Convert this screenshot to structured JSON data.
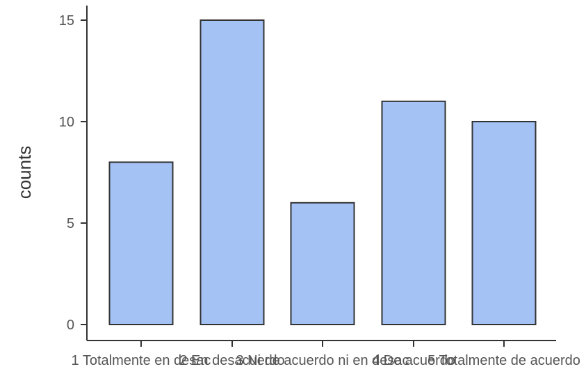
{
  "chart_data": {
    "type": "bar",
    "title": "",
    "xlabel": "",
    "ylabel": "counts",
    "categories": [
      "1 Totalmente en desac",
      "2 En desacuerdo",
      "3 Ni de acuerdo ni en desac",
      "4 De acuerdo",
      "5 Totalmente de acuerdo"
    ],
    "values": [
      8,
      15,
      6,
      11,
      10
    ],
    "ylim": [
      0,
      15.7
    ],
    "yticks": [
      0,
      5,
      10,
      15
    ],
    "grid": false,
    "legend": "none",
    "colors": {
      "bar_fill": "#a4c2f4",
      "bar_stroke": "#333333",
      "axis": "#333333",
      "text": "#555555"
    }
  }
}
